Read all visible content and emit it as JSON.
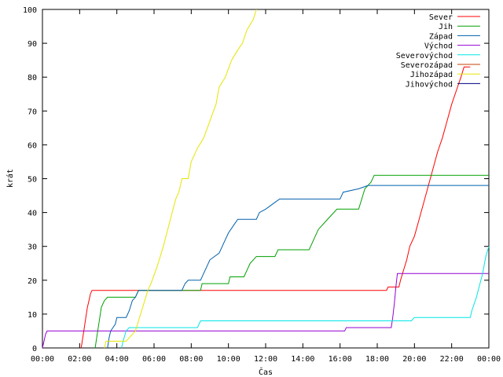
{
  "chart_data": {
    "type": "line",
    "title": "",
    "xlabel": "Čas",
    "ylabel": "krát",
    "xlim": [
      "00:00",
      "24:00"
    ],
    "ylim": [
      0,
      100
    ],
    "x_ticks": [
      "00:00",
      "02:00",
      "04:00",
      "06:00",
      "08:00",
      "10:00",
      "12:00",
      "14:00",
      "16:00",
      "18:00",
      "20:00",
      "22:00",
      "00:00"
    ],
    "y_ticks": [
      0,
      10,
      20,
      30,
      40,
      50,
      60,
      70,
      80,
      90,
      100
    ],
    "grid": false,
    "legend_position": "top-right",
    "series": [
      {
        "name": "Sever",
        "color": "#ff0000",
        "points": [
          [
            "02:05",
            0
          ],
          [
            "02:10",
            3
          ],
          [
            "02:15",
            6
          ],
          [
            "02:20",
            9
          ],
          [
            "02:25",
            12
          ],
          [
            "02:30",
            14
          ],
          [
            "02:35",
            16
          ],
          [
            "02:40",
            17
          ],
          [
            "18:30",
            17
          ],
          [
            "18:35",
            18
          ],
          [
            "19:10",
            18
          ],
          [
            "19:15",
            20
          ],
          [
            "19:25",
            23
          ],
          [
            "19:35",
            26
          ],
          [
            "19:45",
            30
          ],
          [
            "20:00",
            33
          ],
          [
            "20:15",
            38
          ],
          [
            "20:30",
            43
          ],
          [
            "20:45",
            48
          ],
          [
            "21:00",
            53
          ],
          [
            "21:15",
            58
          ],
          [
            "21:30",
            62
          ],
          [
            "21:45",
            67
          ],
          [
            "22:00",
            72
          ],
          [
            "22:15",
            76
          ],
          [
            "22:30",
            80
          ],
          [
            "22:40",
            83
          ],
          [
            "23:00",
            83
          ]
        ]
      },
      {
        "name": "Jih",
        "color": "#00a000",
        "points": [
          [
            "02:50",
            0
          ],
          [
            "02:55",
            3
          ],
          [
            "03:00",
            6
          ],
          [
            "03:05",
            9
          ],
          [
            "03:10",
            12
          ],
          [
            "03:20",
            14
          ],
          [
            "03:30",
            15
          ],
          [
            "05:00",
            15
          ],
          [
            "05:05",
            16
          ],
          [
            "05:10",
            17
          ],
          [
            "08:30",
            17
          ],
          [
            "08:35",
            19
          ],
          [
            "10:00",
            19
          ],
          [
            "10:05",
            21
          ],
          [
            "10:50",
            21
          ],
          [
            "11:00",
            23
          ],
          [
            "11:10",
            25
          ],
          [
            "11:30",
            27
          ],
          [
            "12:30",
            27
          ],
          [
            "12:40",
            29
          ],
          [
            "14:20",
            29
          ],
          [
            "14:30",
            31
          ],
          [
            "14:40",
            33
          ],
          [
            "14:50",
            35
          ],
          [
            "15:10",
            37
          ],
          [
            "15:30",
            39
          ],
          [
            "15:50",
            41
          ],
          [
            "17:00",
            41
          ],
          [
            "17:10",
            44
          ],
          [
            "17:20",
            47
          ],
          [
            "17:40",
            49
          ],
          [
            "17:50",
            51
          ],
          [
            "24:00",
            51
          ]
        ]
      },
      {
        "name": "Západ",
        "color": "#0060ad",
        "points": [
          [
            "03:30",
            0
          ],
          [
            "03:35",
            3
          ],
          [
            "03:40",
            5
          ],
          [
            "03:55",
            7
          ],
          [
            "04:00",
            9
          ],
          [
            "04:30",
            9
          ],
          [
            "04:40",
            11
          ],
          [
            "04:50",
            14
          ],
          [
            "05:00",
            15
          ],
          [
            "05:10",
            17
          ],
          [
            "07:30",
            17
          ],
          [
            "07:40",
            19
          ],
          [
            "07:50",
            20
          ],
          [
            "08:30",
            20
          ],
          [
            "08:40",
            22
          ],
          [
            "08:50",
            24
          ],
          [
            "09:00",
            26
          ],
          [
            "09:30",
            28
          ],
          [
            "09:40",
            30
          ],
          [
            "09:50",
            32
          ],
          [
            "10:00",
            34
          ],
          [
            "10:15",
            36
          ],
          [
            "10:30",
            38
          ],
          [
            "11:30",
            38
          ],
          [
            "11:40",
            40
          ],
          [
            "12:00",
            41
          ],
          [
            "12:30",
            43
          ],
          [
            "12:45",
            44
          ],
          [
            "16:00",
            44
          ],
          [
            "16:10",
            46
          ],
          [
            "17:00",
            47
          ],
          [
            "17:30",
            48
          ],
          [
            "24:00",
            48
          ]
        ]
      },
      {
        "name": "Východ",
        "color": "#9400d3",
        "points": [
          [
            "00:00",
            0
          ],
          [
            "00:05",
            2
          ],
          [
            "00:10",
            4
          ],
          [
            "00:15",
            5
          ],
          [
            "16:15",
            5
          ],
          [
            "16:20",
            6
          ],
          [
            "18:45",
            6
          ],
          [
            "18:50",
            9
          ],
          [
            "18:55",
            13
          ],
          [
            "19:00",
            18
          ],
          [
            "19:05",
            22
          ],
          [
            "24:00",
            22
          ]
        ]
      },
      {
        "name": "Severovýchod",
        "color": "#00e5e5",
        "points": [
          [
            "04:15",
            0
          ],
          [
            "04:20",
            2
          ],
          [
            "04:30",
            5
          ],
          [
            "04:40",
            6
          ],
          [
            "08:20",
            6
          ],
          [
            "08:30",
            8
          ],
          [
            "19:50",
            8
          ],
          [
            "20:00",
            9
          ],
          [
            "23:00",
            9
          ],
          [
            "23:05",
            11
          ],
          [
            "23:20",
            15
          ],
          [
            "23:40",
            22
          ],
          [
            "23:50",
            27
          ],
          [
            "24:00",
            30
          ]
        ]
      },
      {
        "name": "Severozápad",
        "color": "#c04000",
        "points": []
      },
      {
        "name": "Jihozápad",
        "color": "#e5e500",
        "points": [
          [
            "03:20",
            0
          ],
          [
            "03:25",
            2
          ],
          [
            "04:30",
            2
          ],
          [
            "04:40",
            3
          ],
          [
            "05:00",
            5
          ],
          [
            "05:10",
            8
          ],
          [
            "05:20",
            11
          ],
          [
            "05:30",
            14
          ],
          [
            "05:40",
            17
          ],
          [
            "05:50",
            19
          ],
          [
            "06:10",
            24
          ],
          [
            "06:30",
            30
          ],
          [
            "06:50",
            37
          ],
          [
            "07:10",
            44
          ],
          [
            "07:20",
            46
          ],
          [
            "07:30",
            50
          ],
          [
            "07:50",
            50
          ],
          [
            "08:00",
            55
          ],
          [
            "08:20",
            59
          ],
          [
            "08:40",
            62
          ],
          [
            "09:00",
            67
          ],
          [
            "09:20",
            72
          ],
          [
            "09:30",
            77
          ],
          [
            "09:50",
            80
          ],
          [
            "10:10",
            85
          ],
          [
            "10:30",
            88
          ],
          [
            "10:45",
            90
          ],
          [
            "11:00",
            94
          ],
          [
            "11:20",
            97
          ],
          [
            "11:30",
            100
          ]
        ]
      },
      {
        "name": "Jihovýchod",
        "color": "#000080",
        "points": []
      }
    ]
  }
}
